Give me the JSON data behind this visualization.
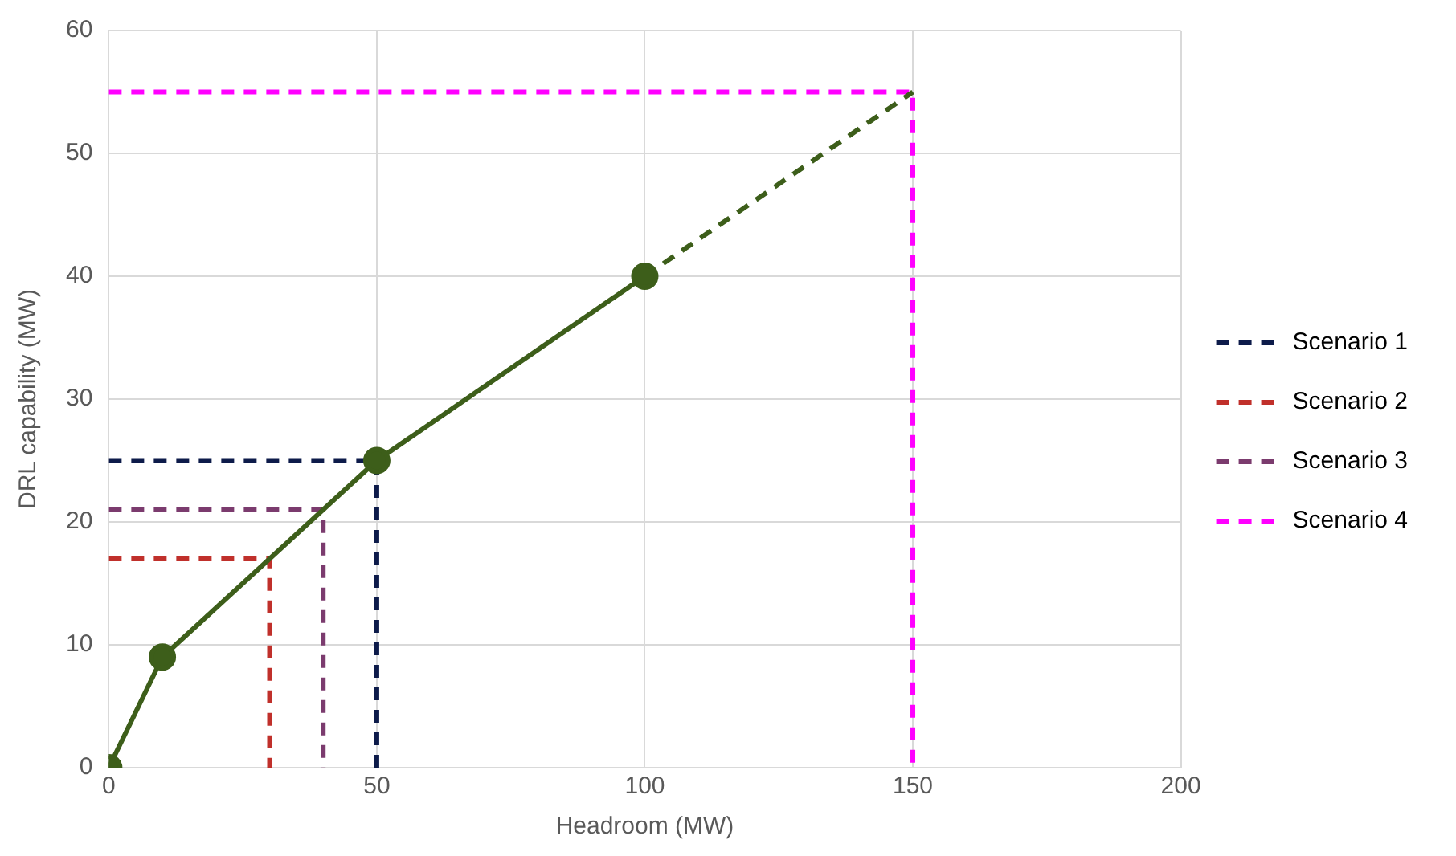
{
  "chart_data": {
    "type": "line",
    "xlabel": "Headroom (MW)",
    "ylabel": "DRL capability (MW)",
    "xlim": [
      0,
      200
    ],
    "xticks": [
      0,
      50,
      100,
      150,
      200
    ],
    "ylim": [
      0,
      60
    ],
    "yticks": [
      0,
      10,
      20,
      30,
      40,
      50,
      60
    ],
    "grid": true,
    "legend": "right",
    "series": [
      {
        "color": "#3d5e1a",
        "x": [
          0,
          10,
          50,
          100
        ],
        "values": [
          0,
          9,
          25,
          40
        ],
        "marker": "circle",
        "line_style": "solid"
      },
      {
        "color": "#3d5e1a",
        "x": [
          100,
          150
        ],
        "values": [
          40,
          55
        ],
        "marker": "none",
        "line_style": "dashed"
      },
      {
        "name": "Scenario 1",
        "color": "#0d1b4a",
        "x": [
          0,
          50,
          50
        ],
        "values": [
          25,
          25,
          0
        ],
        "marker": "none",
        "line_style": "dashed"
      },
      {
        "name": "Scenario 2",
        "color": "#c0302b",
        "x": [
          0,
          30,
          30
        ],
        "values": [
          17,
          17,
          0
        ],
        "marker": "none",
        "line_style": "dashed"
      },
      {
        "name": "Scenario 3",
        "color": "#7b3b6e",
        "x": [
          0,
          40,
          40
        ],
        "values": [
          21,
          21,
          0
        ],
        "marker": "none",
        "line_style": "dashed"
      },
      {
        "name": "Scenario 4",
        "color": "#ff00ff",
        "x": [
          0,
          150,
          150
        ],
        "values": [
          55,
          55,
          0
        ],
        "marker": "none",
        "line_style": "dashed"
      }
    ]
  }
}
